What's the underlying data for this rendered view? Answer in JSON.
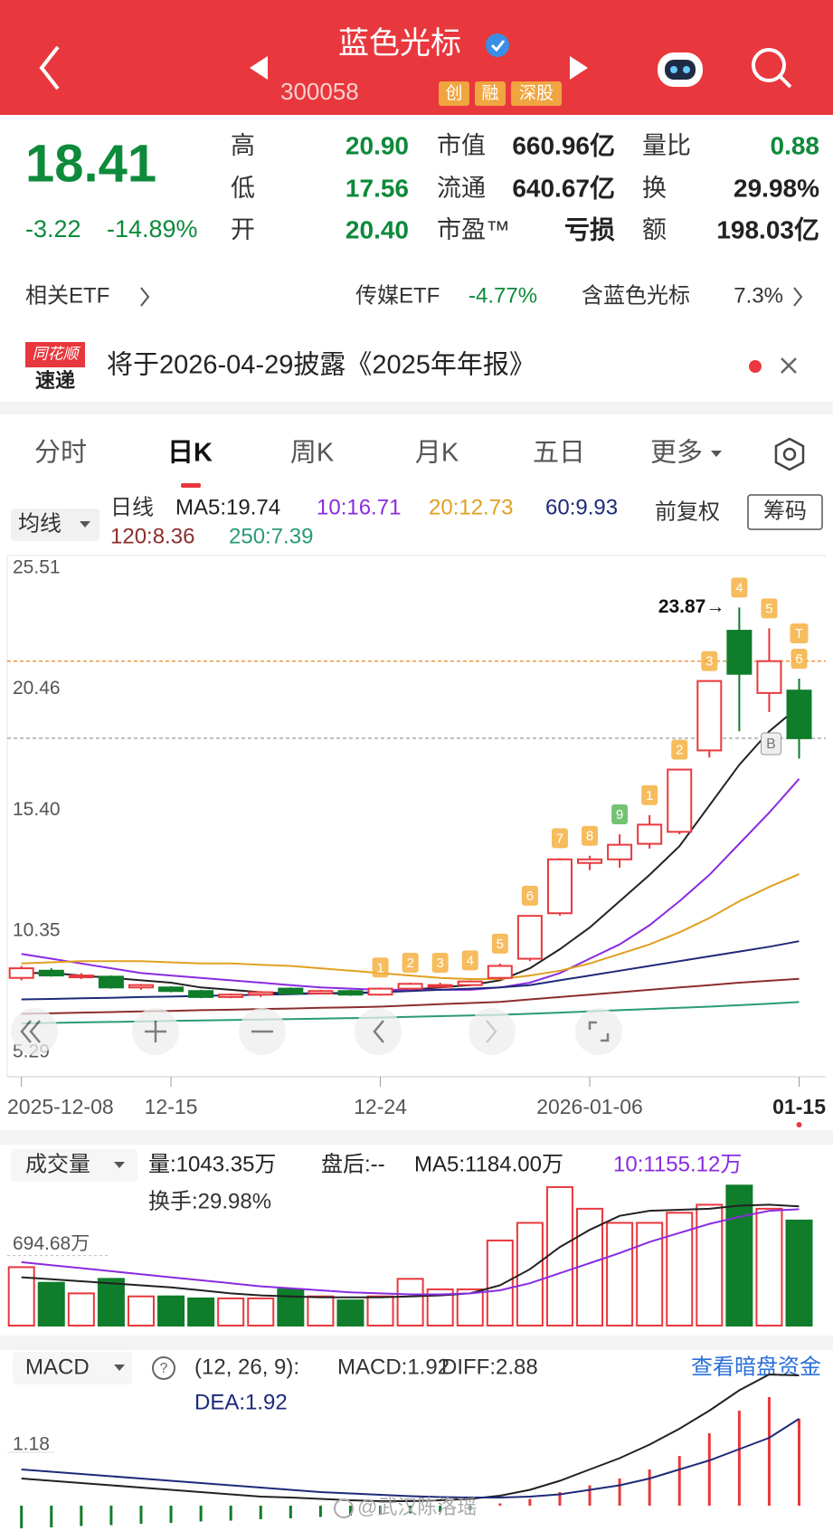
{
  "header": {
    "title": "蓝色光标",
    "code": "300058",
    "tags": [
      "创",
      "融",
      "深股"
    ]
  },
  "quote": {
    "price": "18.41",
    "change": "-3.22",
    "change_pct": "-14.89%",
    "stats": [
      {
        "label": "高",
        "value": "20.90",
        "color": "#0d8a3a"
      },
      {
        "label": "低",
        "value": "17.56",
        "color": "#0d8a3a"
      },
      {
        "label": "开",
        "value": "20.40",
        "color": "#0d8a3a"
      },
      {
        "label": "市值",
        "value": "660.96亿",
        "color": "#222"
      },
      {
        "label": "流通",
        "value": "640.67亿",
        "color": "#222"
      },
      {
        "label": "市盈™",
        "value": "亏损",
        "color": "#222"
      },
      {
        "label": "量比",
        "value": "0.88",
        "color": "#0d8a3a"
      },
      {
        "label": "换",
        "value": "29.98%",
        "color": "#222"
      },
      {
        "label": "额",
        "value": "198.03亿",
        "color": "#222"
      }
    ]
  },
  "etf": {
    "label": "相关ETF",
    "sector": "传媒ETF",
    "sector_change": "-4.77%",
    "holding": "含蓝色光标",
    "holding_pct": "7.3%"
  },
  "news": {
    "logo": [
      "同花顺",
      "速递"
    ],
    "text": "将于2026-04-29披露《2025年年报》"
  },
  "tabs": [
    "分时",
    "日K",
    "周K",
    "月K",
    "五日",
    "更多"
  ],
  "active_tab": 1,
  "ma_bar": {
    "selector": "均线",
    "period": "日线",
    "adjust": "前复权",
    "button": "筹码"
  },
  "kline": {
    "ylim": [
      5.29,
      25.51
    ],
    "yticks": [
      25.51,
      20.46,
      {
        "value": 15.4,
        "label": "15.40"
      },
      10.35,
      5.29
    ],
    "dates": [
      "2025-12-08",
      null,
      null,
      null,
      null,
      "12-15",
      null,
      null,
      null,
      null,
      null,
      null,
      "12-24",
      null,
      null,
      null,
      null,
      null,
      null,
      "2026-01-06",
      null,
      null,
      null,
      null,
      null,
      null,
      "01-15"
    ],
    "open": [
      8.4,
      8.7,
      8.45,
      8.45,
      8.0,
      8.0,
      7.85,
      7.6,
      7.7,
      7.95,
      7.75,
      7.85,
      7.7,
      7.95,
      8.05,
      8.1,
      8.4,
      9.2,
      11.1,
      13.2,
      13.35,
      14.0,
      14.5,
      17.9,
      22.9,
      20.3,
      20.4
    ],
    "high": [
      8.9,
      8.8,
      8.6,
      8.5,
      8.15,
      8.05,
      7.9,
      7.75,
      7.85,
      8.0,
      7.9,
      7.9,
      8.0,
      8.2,
      8.2,
      8.3,
      9.0,
      11.0,
      13.4,
      13.5,
      14.4,
      15.2,
      17.1,
      20.8,
      23.87,
      23.0,
      20.9
    ],
    "low": [
      8.3,
      8.45,
      8.35,
      7.95,
      7.9,
      7.8,
      7.55,
      7.55,
      7.6,
      7.7,
      7.7,
      7.65,
      7.65,
      7.9,
      8.0,
      8.05,
      8.3,
      9.1,
      11.0,
      12.9,
      13.0,
      13.8,
      14.4,
      17.6,
      18.7,
      19.5,
      17.56
    ],
    "close": [
      8.8,
      8.5,
      8.5,
      8.0,
      8.1,
      7.85,
      7.6,
      7.7,
      7.8,
      7.75,
      7.85,
      7.7,
      7.95,
      8.15,
      8.1,
      8.25,
      8.9,
      10.99,
      13.35,
      13.35,
      13.96,
      14.8,
      17.1,
      20.8,
      21.1,
      21.63,
      18.41
    ],
    "up_color": "#e8383d",
    "down_color": "#0f7d2a",
    "prev_close": 21.63,
    "peak_label": "23.87→",
    "tags": [
      null,
      null,
      null,
      null,
      null,
      null,
      null,
      null,
      null,
      null,
      null,
      null,
      "1",
      "2",
      "3",
      "4",
      "5",
      "6",
      "7",
      "8",
      "9",
      "1",
      "2",
      "3",
      "4",
      "5",
      "6"
    ],
    "top_marker": "T",
    "bottom_marker": "B",
    "ma": [
      {
        "label": "MA5:19.74",
        "color": "#222222",
        "values": [
          8.6,
          8.6,
          8.5,
          8.4,
          8.3,
          8.2,
          8.0,
          7.9,
          7.8,
          7.75,
          7.75,
          7.75,
          7.8,
          7.9,
          8.0,
          8.1,
          8.3,
          8.8,
          9.6,
          10.5,
          11.6,
          12.7,
          13.9,
          15.6,
          17.3,
          18.7,
          19.74
        ]
      },
      {
        "label": "10:16.71",
        "color": "#8a2be2",
        "values": [
          9.4,
          9.2,
          9.0,
          8.8,
          8.6,
          8.5,
          8.4,
          8.3,
          8.2,
          8.1,
          8.0,
          7.95,
          7.9,
          7.9,
          7.9,
          7.9,
          8.0,
          8.2,
          8.6,
          9.2,
          9.8,
          10.6,
          11.6,
          12.7,
          14.0,
          15.3,
          16.71
        ]
      },
      {
        "label": "20:12.73",
        "color": "#e0a020",
        "values": [
          9.0,
          9.05,
          9.1,
          9.1,
          9.1,
          9.05,
          9.0,
          9.0,
          8.95,
          8.9,
          8.8,
          8.7,
          8.6,
          8.5,
          8.4,
          8.35,
          8.35,
          8.5,
          8.7,
          9.0,
          9.4,
          9.8,
          10.3,
          10.9,
          11.6,
          12.2,
          12.73
        ]
      },
      {
        "label": "60:9.93",
        "color": "#1e2a78",
        "values": [
          7.5,
          7.52,
          7.55,
          7.57,
          7.6,
          7.62,
          7.65,
          7.67,
          7.7,
          7.72,
          7.75,
          7.78,
          7.8,
          7.85,
          7.9,
          7.95,
          8.0,
          8.1,
          8.3,
          8.5,
          8.7,
          8.9,
          9.1,
          9.3,
          9.5,
          9.7,
          9.93
        ]
      },
      {
        "label": "120:8.36",
        "color": "#8b2e2e",
        "values": [
          6.9,
          6.92,
          6.95,
          6.97,
          7.0,
          7.02,
          7.05,
          7.07,
          7.1,
          7.12,
          7.15,
          7.17,
          7.2,
          7.25,
          7.3,
          7.35,
          7.4,
          7.5,
          7.6,
          7.7,
          7.8,
          7.9,
          8.0,
          8.1,
          8.2,
          8.28,
          8.36
        ]
      },
      {
        "label": "250:7.39",
        "color": "#2a9a7a",
        "values": [
          6.5,
          6.52,
          6.54,
          6.56,
          6.58,
          6.6,
          6.62,
          6.64,
          6.66,
          6.68,
          6.7,
          6.72,
          6.74,
          6.77,
          6.8,
          6.83,
          6.86,
          6.9,
          6.95,
          7.0,
          7.05,
          7.1,
          7.15,
          7.2,
          7.26,
          7.32,
          7.39
        ]
      }
    ]
  },
  "volume": {
    "selector": "成交量",
    "stats": [
      {
        "text": "量:1043.35万",
        "color": "#222"
      },
      {
        "text": "盘后:--",
        "color": "#222"
      },
      {
        "text": "MA5:1184.00万",
        "color": "#222"
      },
      {
        "text": "10:1155.12万",
        "color": "#8a2be2"
      }
    ],
    "turnover": "换手:29.98%",
    "ylim": [
      0,
      1554
    ],
    "yticks": [
      {
        "value": 694.68,
        "label": "694.68万"
      }
    ],
    "values": [
      580,
      425,
      320,
      464,
      290,
      290,
      270,
      270,
      270,
      360,
      290,
      250,
      290,
      464,
      360,
      360,
      845,
      1020,
      1375,
      1160,
      1020,
      1020,
      1120,
      1200,
      1390,
      1160,
      1043.35
    ],
    "ma": [
      {
        "color": "#222222",
        "values": [
          480,
          460,
          440,
          420,
          400,
          380,
          350,
          320,
          300,
          290,
          280,
          280,
          280,
          290,
          300,
          320,
          400,
          560,
          780,
          950,
          1090,
          1140,
          1150,
          1160,
          1190,
          1200,
          1184
        ]
      },
      {
        "color": "#8a2be2",
        "values": [
          630,
          600,
          570,
          540,
          510,
          480,
          450,
          420,
          390,
          370,
          350,
          330,
          320,
          310,
          310,
          320,
          350,
          420,
          520,
          620,
          720,
          830,
          920,
          1010,
          1080,
          1140,
          1155.12
        ]
      }
    ]
  },
  "macd": {
    "selector": "MACD",
    "params": "(12, 26, 9):",
    "stats": [
      "MACD:1.92",
      "DIFF:2.88"
    ],
    "dea_label": "DEA:1.92",
    "link": "查看暗盘资金",
    "ylim": [
      -0.56,
      3.0
    ],
    "yticks": [
      1.18
    ],
    "hist": [
      -0.5,
      -0.48,
      -0.45,
      -0.43,
      -0.4,
      -0.38,
      -0.35,
      -0.33,
      -0.3,
      -0.28,
      -0.25,
      -0.22,
      -0.2,
      -0.17,
      -0.14,
      -0.1,
      0.05,
      0.15,
      0.3,
      0.45,
      0.6,
      0.8,
      1.1,
      1.6,
      2.1,
      2.4,
      1.92
    ],
    "diff": [
      0.6,
      0.55,
      0.5,
      0.45,
      0.4,
      0.35,
      0.3,
      0.25,
      0.2,
      0.18,
      0.15,
      0.12,
      0.1,
      0.1,
      0.12,
      0.15,
      0.22,
      0.35,
      0.55,
      0.8,
      1.05,
      1.35,
      1.7,
      2.1,
      2.55,
      2.9,
      2.88
    ],
    "dea": [
      0.8,
      0.75,
      0.7,
      0.65,
      0.6,
      0.55,
      0.5,
      0.45,
      0.4,
      0.35,
      0.3,
      0.27,
      0.24,
      0.21,
      0.19,
      0.18,
      0.18,
      0.2,
      0.25,
      0.35,
      0.45,
      0.6,
      0.8,
      1.0,
      1.25,
      1.5,
      1.92
    ]
  },
  "watermark": "@武汉陈洛瑶"
}
